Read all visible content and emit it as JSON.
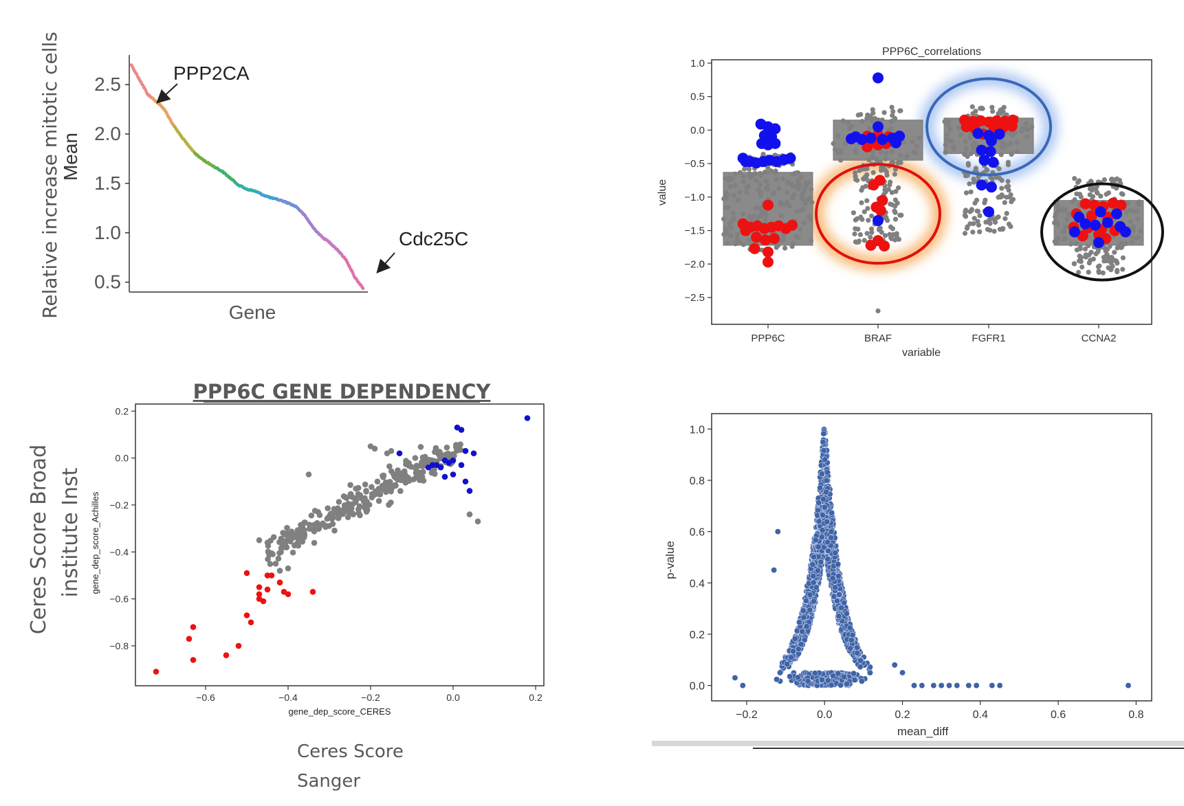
{
  "chart_data": [
    {
      "id": "mitotic",
      "type": "line",
      "xlabel": "Gene",
      "ylabel_lines": [
        "Relative increase mitotic cells",
        "Mean"
      ],
      "yticks": [
        "2.5",
        "2.0",
        "1.5",
        "1.0",
        "0.5"
      ],
      "ylim": [
        0.4,
        2.8
      ],
      "annotations": [
        {
          "text": "PPP2CA",
          "x": 0.12,
          "y": 2.35
        },
        {
          "text": "Cdc25C",
          "x": 0.99,
          "y": 0.47
        }
      ],
      "series": [
        {
          "values": [
            2.7,
            2.55,
            2.4,
            2.33,
            2.25,
            2.1,
            1.98,
            1.87,
            1.78,
            1.72,
            1.67,
            1.62,
            1.55,
            1.48,
            1.44,
            1.42,
            1.38,
            1.35,
            1.33,
            1.3,
            1.26,
            1.17,
            1.05,
            0.96,
            0.9,
            0.82,
            0.72,
            0.55,
            0.44
          ]
        }
      ],
      "colors": [
        "#e88a8a",
        "#e8a060",
        "#b8b040",
        "#70b040",
        "#40b070",
        "#30b0a8",
        "#40a0d0",
        "#7090d8",
        "#a080d0",
        "#c878c0",
        "#e070a8"
      ]
    },
    {
      "id": "correlations",
      "type": "scatter",
      "title": "PPP6C_correlations",
      "xlabel": "variable",
      "ylabel": "value",
      "categories": [
        "PPP6C",
        "BRAF",
        "FGFR1",
        "CCNA2"
      ],
      "yticks": [
        "1.0",
        "0.5",
        "0.0",
        "−0.5",
        "−1.0",
        "−1.5",
        "−2.0",
        "−2.5"
      ],
      "ylim": [
        -2.9,
        1.05
      ],
      "colors": {
        "gray": "#808080",
        "red": "#ee1111",
        "blue": "#1111ee",
        "box": "#8a8a8a"
      },
      "groups": [
        {
          "box": [
            -1.72,
            -0.63
          ],
          "gray_range": [
            -1.8,
            -0.35
          ],
          "gray_n": 220,
          "blue": [
            [
              -0.08,
              0.09
            ],
            [
              0.0,
              0.05
            ],
            [
              0.08,
              0.02
            ],
            [
              -0.04,
              -0.08
            ],
            [
              0.04,
              -0.1
            ],
            [
              -0.07,
              -0.2
            ],
            [
              0.0,
              -0.22
            ],
            [
              0.08,
              -0.2
            ],
            [
              -0.28,
              -0.42
            ],
            [
              -0.2,
              -0.47
            ],
            [
              -0.13,
              -0.49
            ],
            [
              -0.05,
              -0.47
            ],
            [
              0.02,
              -0.45
            ],
            [
              0.1,
              -0.47
            ],
            [
              0.18,
              -0.44
            ],
            [
              0.25,
              -0.42
            ],
            [
              -0.25,
              -0.47
            ]
          ],
          "red": [
            [
              0.0,
              -1.12
            ],
            [
              -0.28,
              -1.4
            ],
            [
              -0.2,
              -1.45
            ],
            [
              -0.12,
              -1.43
            ],
            [
              -0.04,
              -1.47
            ],
            [
              0.04,
              -1.45
            ],
            [
              0.12,
              -1.43
            ],
            [
              0.2,
              -1.47
            ],
            [
              0.27,
              -1.42
            ],
            [
              -0.25,
              -1.5
            ],
            [
              -0.13,
              -1.6
            ],
            [
              -0.03,
              -1.64
            ],
            [
              0.07,
              -1.62
            ],
            [
              -0.15,
              -1.77
            ],
            [
              0.0,
              -1.82
            ],
            [
              0.0,
              -1.97
            ]
          ]
        },
        {
          "box": [
            -0.45,
            0.15
          ],
          "gray_range": [
            -1.7,
            0.35
          ],
          "gray_n": 190,
          "gray_extra": [
            [
              0.0,
              -2.7
            ]
          ],
          "blue": [
            [
              0.0,
              0.78
            ],
            [
              0.0,
              0.05
            ],
            [
              -0.25,
              -0.1
            ],
            [
              -0.18,
              -0.14
            ],
            [
              -0.08,
              -0.12
            ],
            [
              0.05,
              -0.14
            ],
            [
              0.16,
              -0.12
            ],
            [
              0.24,
              -0.09
            ],
            [
              -0.3,
              -0.13
            ],
            [
              0.2,
              -0.19
            ],
            [
              0.0,
              -1.35
            ]
          ],
          "red": [
            [
              -0.12,
              -0.09
            ],
            [
              0.0,
              -0.07
            ],
            [
              0.12,
              -0.1
            ],
            [
              -0.05,
              -0.15
            ],
            [
              0.09,
              -0.2
            ],
            [
              -0.12,
              -0.25
            ],
            [
              0.0,
              -0.22
            ],
            [
              0.02,
              -0.75
            ],
            [
              -0.05,
              -0.82
            ],
            [
              0.05,
              -1.05
            ],
            [
              -0.02,
              -1.15
            ],
            [
              0.03,
              -1.2
            ],
            [
              0.0,
              -1.65
            ],
            [
              -0.08,
              -1.72
            ],
            [
              0.07,
              -1.73
            ]
          ]
        },
        {
          "box": [
            -0.35,
            0.18
          ],
          "gray_range": [
            -1.55,
            0.35
          ],
          "gray_n": 200,
          "red": [
            [
              -0.27,
              0.15
            ],
            [
              -0.18,
              0.13
            ],
            [
              -0.09,
              0.14
            ],
            [
              0.0,
              0.12
            ],
            [
              0.09,
              0.14
            ],
            [
              0.18,
              0.13
            ],
            [
              0.27,
              0.15
            ],
            [
              -0.25,
              0.05
            ],
            [
              -0.16,
              0.03
            ],
            [
              0.06,
              0.02
            ],
            [
              0.16,
              0.04
            ],
            [
              0.26,
              0.06
            ],
            [
              -0.06,
              -0.06
            ]
          ],
          "blue": [
            [
              -0.12,
              -0.05
            ],
            [
              0.0,
              -0.08
            ],
            [
              0.12,
              -0.06
            ],
            [
              0.03,
              -0.16
            ],
            [
              -0.08,
              -0.3
            ],
            [
              0.02,
              -0.32
            ],
            [
              -0.05,
              -0.45
            ],
            [
              0.05,
              -0.48
            ],
            [
              -0.08,
              -0.82
            ],
            [
              0.03,
              -0.85
            ],
            [
              0.0,
              -1.22
            ]
          ]
        },
        {
          "box": [
            -1.72,
            -1.05
          ],
          "gray_range": [
            -2.15,
            -0.7
          ],
          "gray_n": 200,
          "red": [
            [
              -0.15,
              -1.1
            ],
            [
              -0.05,
              -1.12
            ],
            [
              0.05,
              -1.14
            ],
            [
              0.16,
              -1.09
            ],
            [
              0.25,
              -1.12
            ],
            [
              -0.25,
              -1.25
            ],
            [
              -0.08,
              -1.28
            ],
            [
              0.1,
              -1.3
            ],
            [
              -0.28,
              -1.45
            ],
            [
              -0.12,
              -1.46
            ],
            [
              0.03,
              -1.48
            ],
            [
              0.18,
              -1.5
            ],
            [
              -0.18,
              -1.58
            ],
            [
              0.08,
              -1.62
            ],
            [
              0.0,
              -1.56
            ]
          ],
          "blue": [
            [
              -0.22,
              -1.3
            ],
            [
              0.02,
              -1.22
            ],
            [
              0.2,
              -1.25
            ],
            [
              -0.15,
              -1.4
            ],
            [
              0.1,
              -1.38
            ],
            [
              -0.04,
              -1.42
            ],
            [
              0.24,
              -1.44
            ],
            [
              -0.27,
              -1.52
            ],
            [
              0.3,
              -1.52
            ],
            [
              0.0,
              -1.68
            ]
          ]
        }
      ],
      "highlights": [
        {
          "category": "BRAF",
          "color": "#e01010",
          "glow": "#f6a24a"
        },
        {
          "category": "FGFR1",
          "color": "#3a68b8",
          "glow": "#90b4ee"
        },
        {
          "category": "CCNA2",
          "color": "#111111"
        }
      ]
    },
    {
      "id": "dependency",
      "type": "scatter",
      "title": "PPP6C GENE DEPENDENCY",
      "xlabel": "gene_dep_score_CERES",
      "ylabel": "gene_dep_score_Achilles",
      "outer_ylabel_lines": [
        "Ceres Score Broad",
        "institute Inst"
      ],
      "outer_xlabel_lines": [
        "Ceres Score",
        "Sanger"
      ],
      "xticks": [
        "−0.6",
        "−0.4",
        "−0.2",
        "0.0",
        "0.2"
      ],
      "yticks": [
        "0.2",
        "0.0",
        "−0.2",
        "−0.4",
        "−0.6",
        "−0.8"
      ],
      "xlim": [
        -0.77,
        0.22
      ],
      "ylim": [
        -0.97,
        0.23
      ],
      "colors": {
        "gray": "#808080",
        "red": "#ee1111",
        "blue": "#1111cc"
      },
      "red": [
        [
          -0.72,
          -0.91
        ],
        [
          -0.64,
          -0.77
        ],
        [
          -0.63,
          -0.72
        ],
        [
          -0.63,
          -0.86
        ],
        [
          -0.55,
          -0.84
        ],
        [
          -0.52,
          -0.8
        ],
        [
          -0.5,
          -0.67
        ],
        [
          -0.49,
          -0.7
        ],
        [
          -0.5,
          -0.49
        ],
        [
          -0.47,
          -0.55
        ],
        [
          -0.47,
          -0.58
        ],
        [
          -0.47,
          -0.6
        ],
        [
          -0.46,
          -0.61
        ],
        [
          -0.45,
          -0.5
        ],
        [
          -0.44,
          -0.5
        ],
        [
          -0.45,
          -0.56
        ],
        [
          -0.42,
          -0.53
        ],
        [
          -0.41,
          -0.57
        ],
        [
          -0.4,
          -0.58
        ],
        [
          -0.34,
          -0.57
        ]
      ],
      "blue": [
        [
          0.18,
          0.17
        ],
        [
          0.01,
          0.13
        ],
        [
          0.02,
          0.12
        ],
        [
          0.03,
          0.03
        ],
        [
          0.05,
          0.02
        ],
        [
          -0.13,
          0.02
        ],
        [
          -0.06,
          -0.04
        ],
        [
          -0.05,
          -0.03
        ],
        [
          -0.04,
          -0.03
        ],
        [
          -0.02,
          -0.01
        ],
        [
          -0.01,
          -0.02
        ],
        [
          0.0,
          -0.01
        ],
        [
          -0.03,
          -0.04
        ],
        [
          0.02,
          -0.03
        ],
        [
          0.03,
          -0.1
        ],
        [
          0.04,
          -0.14
        ],
        [
          0.0,
          -0.07
        ],
        [
          -0.02,
          -0.08
        ]
      ],
      "gray_extra": [
        [
          -0.35,
          -0.07
        ],
        [
          -0.2,
          0.05
        ],
        [
          -0.19,
          0.04
        ],
        [
          -0.15,
          0.03
        ],
        [
          -0.16,
          0.02
        ],
        [
          0.06,
          -0.27
        ],
        [
          0.04,
          -0.24
        ],
        [
          -0.47,
          -0.35
        ],
        [
          -0.43,
          -0.45
        ],
        [
          -0.42,
          -0.48
        ],
        [
          -0.4,
          -0.47
        ]
      ],
      "gray_n": 300
    },
    {
      "id": "pvalue",
      "type": "scatter",
      "xlabel": "mean_diff",
      "ylabel": "p-value",
      "xticks": [
        "−0.2",
        "0.0",
        "0.2",
        "0.4",
        "0.6",
        "0.8"
      ],
      "yticks": [
        "1.0",
        "0.8",
        "0.6",
        "0.4",
        "0.2",
        "0.0"
      ],
      "xlim": [
        -0.29,
        0.84
      ],
      "ylim": [
        -0.06,
        1.06
      ],
      "color": "#3f63a8",
      "n_points": 2600,
      "outliers": [
        [
          -0.23,
          0.03
        ],
        [
          -0.21,
          0.0
        ],
        [
          -0.12,
          0.6
        ],
        [
          -0.13,
          0.45
        ],
        [
          0.78,
          0.0
        ],
        [
          0.45,
          0.0
        ],
        [
          0.43,
          0.0
        ],
        [
          0.39,
          0.0
        ],
        [
          0.37,
          0.0
        ],
        [
          0.34,
          0.0
        ],
        [
          0.32,
          0.0
        ],
        [
          0.3,
          0.0
        ],
        [
          0.28,
          0.0
        ],
        [
          0.25,
          0.0
        ],
        [
          0.23,
          0.0
        ],
        [
          0.18,
          0.08
        ],
        [
          0.2,
          0.05
        ]
      ]
    }
  ]
}
